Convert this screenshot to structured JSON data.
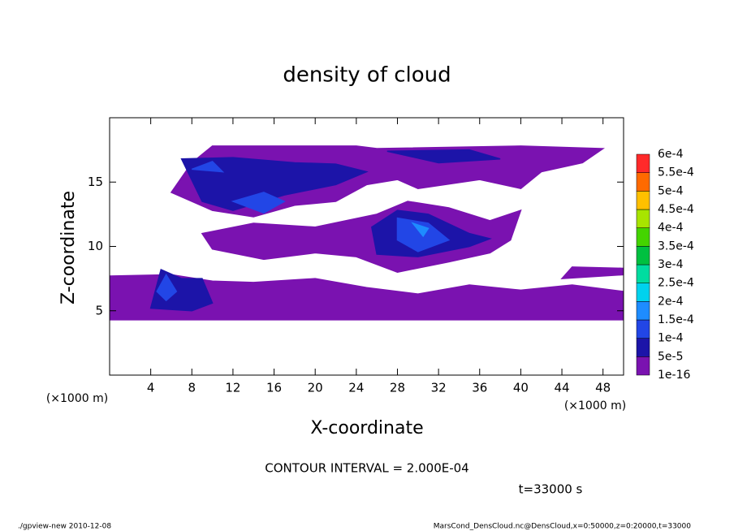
{
  "chart_data": {
    "type": "contour",
    "title": "density of cloud",
    "x_label": "X-coordinate",
    "y_label": "Z-coordinate",
    "x_unit_label": "(×1000 m)",
    "xlim": [
      0,
      50
    ],
    "ylim": [
      0,
      20
    ],
    "xticks": [
      4,
      8,
      12,
      16,
      20,
      24,
      28,
      32,
      36,
      40,
      44,
      48
    ],
    "yticks": [
      5,
      10,
      15
    ],
    "colorbar": {
      "levels": [
        1e-16,
        {
          "value": 5e-05,
          "label": "5e-5"
        },
        {
          "value": 0.0001,
          "label": "1e-4"
        },
        {
          "value": 0.00015,
          "label": "1.5e-4"
        },
        {
          "value": 0.0002,
          "label": "2e-4"
        },
        {
          "value": 0.00025,
          "label": "2.5e-4"
        },
        {
          "value": 0.0003,
          "label": "3e-4"
        },
        {
          "value": 0.00035,
          "label": "3.5e-4"
        },
        {
          "value": 0.0004,
          "label": "4e-4"
        },
        {
          "value": 0.00045,
          "label": "4.5e-4"
        },
        {
          "value": 0.0005,
          "label": "5e-4"
        },
        {
          "value": 0.00055,
          "label": "5.5e-4"
        },
        {
          "value": 0.0006,
          "label": "6e-4"
        }
      ],
      "colors": [
        "#7a12b0",
        "#1c14a8",
        "#2246e6",
        "#1e8cff",
        "#00d2ee",
        "#00dca0",
        "#00c040",
        "#44d400",
        "#a8e400",
        "#ffc000",
        "#ff6a00",
        "#ff2a2a",
        "#ff9a9a"
      ]
    },
    "regions": [
      {
        "value": 1e-16,
        "points": [
          [
            0,
            4.3
          ],
          [
            50,
            4.3
          ],
          [
            50,
            6.5
          ],
          [
            45,
            7.0
          ],
          [
            40,
            6.6
          ],
          [
            35,
            7.0
          ],
          [
            30,
            6.3
          ],
          [
            25,
            6.8
          ],
          [
            20,
            7.5
          ],
          [
            14,
            7.2
          ],
          [
            10,
            7.3
          ],
          [
            6,
            7.8
          ],
          [
            0,
            7.7
          ]
        ]
      },
      {
        "value": 1e-16,
        "points": [
          [
            9,
            11
          ],
          [
            14,
            11.8
          ],
          [
            20,
            11.5
          ],
          [
            26,
            12.5
          ],
          [
            29,
            13.5
          ],
          [
            33,
            13
          ],
          [
            37,
            12
          ],
          [
            40,
            12.8
          ],
          [
            39,
            10.5
          ],
          [
            37,
            9.5
          ],
          [
            33,
            8.8
          ],
          [
            28,
            8.0
          ],
          [
            24,
            9.2
          ],
          [
            20,
            9.5
          ],
          [
            15,
            9.0
          ],
          [
            10,
            9.8
          ]
        ]
      },
      {
        "value": 1e-16,
        "points": [
          [
            6,
            14.2
          ],
          [
            8,
            16.5
          ],
          [
            10,
            17.8
          ],
          [
            24,
            17.8
          ],
          [
            26,
            17.6
          ],
          [
            40,
            17.8
          ],
          [
            48,
            17.6
          ],
          [
            46,
            16.5
          ],
          [
            42,
            15.8
          ],
          [
            40,
            14.5
          ],
          [
            36,
            15.2
          ],
          [
            30,
            14.5
          ],
          [
            28,
            15.2
          ],
          [
            25,
            14.8
          ],
          [
            22,
            13.5
          ],
          [
            18,
            13.2
          ],
          [
            14,
            12.3
          ],
          [
            10,
            12.8
          ]
        ]
      },
      {
        "value": 1e-16,
        "points": [
          [
            44,
            7.5
          ],
          [
            50,
            7.8
          ],
          [
            50,
            8.3
          ],
          [
            45,
            8.4
          ]
        ]
      },
      {
        "value": 5e-05,
        "points": [
          [
            7,
            16.8
          ],
          [
            12,
            16.9
          ],
          [
            18,
            16.5
          ],
          [
            22,
            16.4
          ],
          [
            25,
            15.8
          ],
          [
            22,
            14.8
          ],
          [
            17,
            14.0
          ],
          [
            12,
            12.8
          ],
          [
            9,
            13.5
          ]
        ]
      },
      {
        "value": 5e-05,
        "points": [
          [
            25.5,
            11.5
          ],
          [
            28,
            12.8
          ],
          [
            31,
            12.5
          ],
          [
            35,
            11
          ],
          [
            37,
            10.6
          ],
          [
            35,
            10.0
          ],
          [
            30,
            9.2
          ],
          [
            26,
            9.4
          ]
        ]
      },
      {
        "value": 5e-05,
        "points": [
          [
            4,
            5.2
          ],
          [
            5,
            8.2
          ],
          [
            7,
            7.5
          ],
          [
            9,
            7.5
          ],
          [
            10,
            5.6
          ],
          [
            8,
            5.0
          ]
        ]
      },
      {
        "value": 5e-05,
        "points": [
          [
            27,
            17.4
          ],
          [
            35,
            17.5
          ],
          [
            38,
            16.8
          ],
          [
            32,
            16.5
          ]
        ]
      },
      {
        "value": 0.0001,
        "points": [
          [
            12,
            13.5
          ],
          [
            15,
            14.2
          ],
          [
            17,
            13.5
          ],
          [
            15,
            12.6
          ]
        ]
      },
      {
        "value": 0.0001,
        "points": [
          [
            28,
            12.2
          ],
          [
            31,
            11.8
          ],
          [
            33,
            10.5
          ],
          [
            30,
            9.6
          ],
          [
            28,
            10.5
          ]
        ]
      },
      {
        "value": 0.0001,
        "points": [
          [
            4.6,
            6.5
          ],
          [
            5.5,
            7.8
          ],
          [
            6.5,
            6.5
          ],
          [
            5.5,
            5.8
          ]
        ]
      },
      {
        "value": 0.0001,
        "points": [
          [
            8,
            16
          ],
          [
            10,
            16.6
          ],
          [
            11,
            15.8
          ]
        ]
      },
      {
        "value": 0.00015,
        "points": [
          [
            29.5,
            11.8
          ],
          [
            31,
            11.4
          ],
          [
            30.5,
            10.8
          ]
        ]
      }
    ],
    "contour_interval": "CONTOUR INTERVAL = 2.000E-04",
    "time_label": "t=33000 s",
    "footer_left": "./gpview-new  2010-12-08",
    "footer_right": "MarsCond_DensCloud.nc@DensCloud,x=0:50000,z=0:20000,t=33000"
  }
}
